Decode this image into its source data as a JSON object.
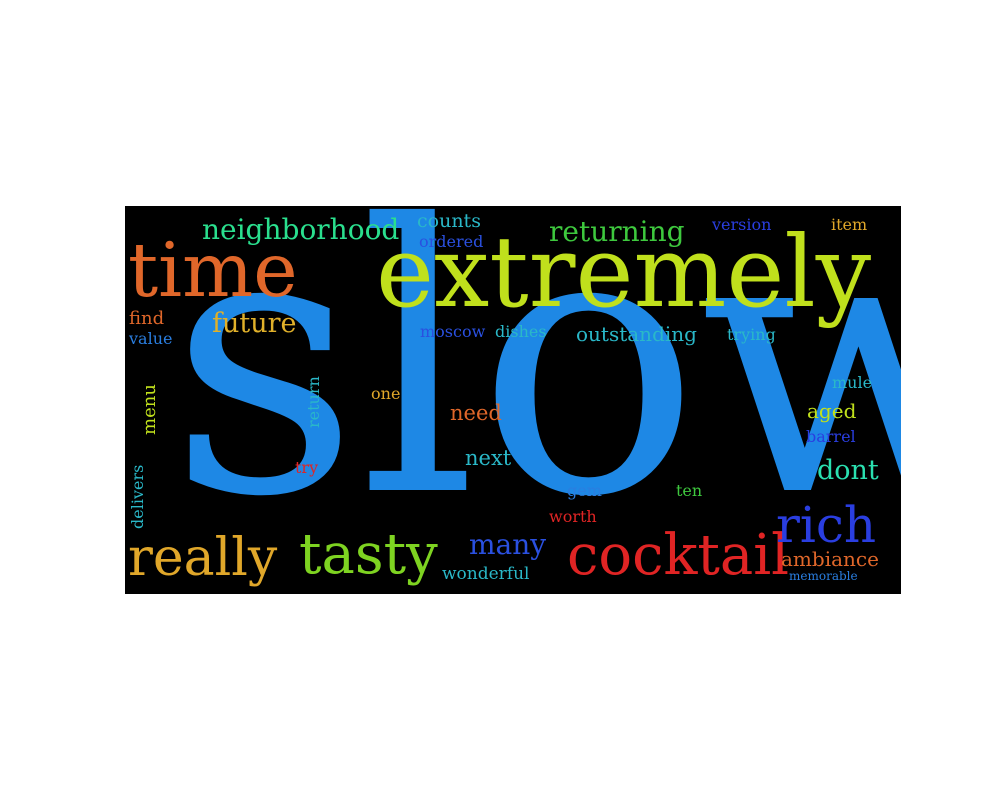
{
  "word_cloud": {
    "background": "#000000",
    "words": [
      {
        "id": "slow",
        "text": "slow",
        "color": "#1e88e5"
      },
      {
        "id": "extremely",
        "text": "extremely",
        "color": "#c0e01c"
      },
      {
        "id": "time",
        "text": "time",
        "color": "#e0672a"
      },
      {
        "id": "cocktail",
        "text": "cocktail",
        "color": "#e02424"
      },
      {
        "id": "really",
        "text": "really",
        "color": "#e0a72a"
      },
      {
        "id": "tasty",
        "text": "tasty",
        "color": "#7ed321"
      },
      {
        "id": "rich",
        "text": "rich",
        "color": "#2a3ee0"
      },
      {
        "id": "neighborhood",
        "text": "neighborhood",
        "color": "#2adf8e"
      },
      {
        "id": "returning",
        "text": "returning",
        "color": "#3ec83e"
      },
      {
        "id": "future",
        "text": "future",
        "color": "#e0b02a"
      },
      {
        "id": "dont",
        "text": "dont",
        "color": "#2ae0b0"
      },
      {
        "id": "many",
        "text": "many",
        "color": "#2a50e0"
      },
      {
        "id": "outstanding",
        "text": "outstanding",
        "color": "#2ab8c8"
      },
      {
        "id": "ambiance",
        "text": "ambiance",
        "color": "#e0672a"
      },
      {
        "id": "counts",
        "text": "counts",
        "color": "#2ab8c8"
      },
      {
        "id": "ordered",
        "text": "ordered",
        "color": "#2a50e0"
      },
      {
        "id": "version",
        "text": "version",
        "color": "#2a3ee0"
      },
      {
        "id": "item",
        "text": "item",
        "color": "#e0a72a"
      },
      {
        "id": "find",
        "text": "find",
        "color": "#e0672a"
      },
      {
        "id": "value",
        "text": "value",
        "color": "#2a7ee0"
      },
      {
        "id": "moscow",
        "text": "moscow",
        "color": "#2a50e0"
      },
      {
        "id": "dishes",
        "text": "dishes",
        "color": "#2ab8c8"
      },
      {
        "id": "trying",
        "text": "trying",
        "color": "#2ab8c8"
      },
      {
        "id": "mule",
        "text": "mule",
        "color": "#2ab8c8"
      },
      {
        "id": "aged",
        "text": "aged",
        "color": "#c0e01c"
      },
      {
        "id": "barrel",
        "text": "barrel",
        "color": "#2a3ee0"
      },
      {
        "id": "menu",
        "text": "menu",
        "color": "#c0e01c"
      },
      {
        "id": "return",
        "text": "return",
        "color": "#2ab8c8"
      },
      {
        "id": "one",
        "text": "one",
        "color": "#e0a72a"
      },
      {
        "id": "need",
        "text": "need",
        "color": "#e0672a"
      },
      {
        "id": "next",
        "text": "next",
        "color": "#2ab8c8"
      },
      {
        "id": "try",
        "text": "try",
        "color": "#e02424"
      },
      {
        "id": "gem",
        "text": "gem",
        "color": "#2a7ee0"
      },
      {
        "id": "ten",
        "text": "ten",
        "color": "#3ec83e"
      },
      {
        "id": "worth",
        "text": "worth",
        "color": "#e02424"
      },
      {
        "id": "delivers",
        "text": "delivers",
        "color": "#2ab8c8"
      },
      {
        "id": "wonderful",
        "text": "wonderful",
        "color": "#2ab8c8"
      },
      {
        "id": "memorable",
        "text": "memorable",
        "color": "#2a7ee0"
      }
    ]
  }
}
